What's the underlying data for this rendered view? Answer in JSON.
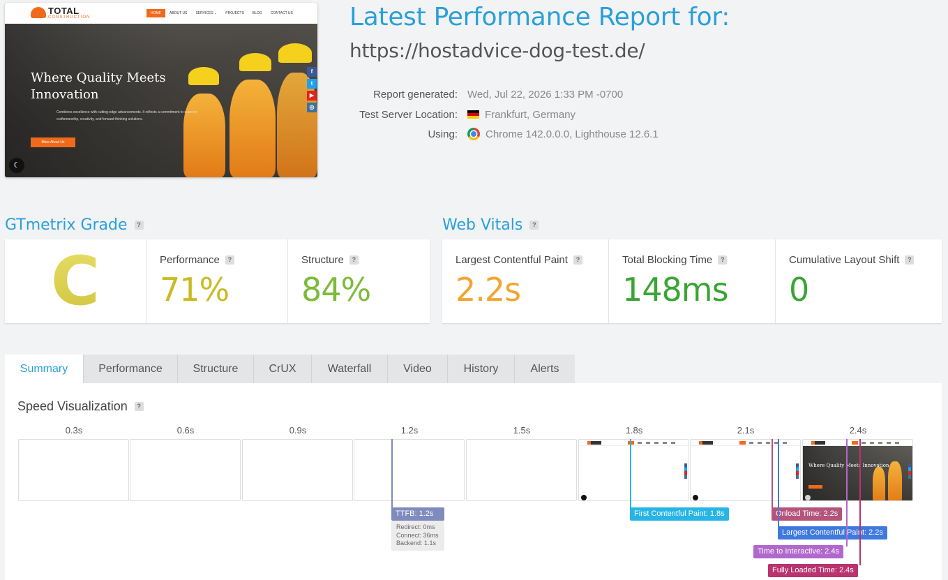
{
  "website_preview": {
    "logo_text": "TOTAL",
    "logo_sub": "CONSTRUCTION",
    "menu": [
      "HOME",
      "ABOUT US",
      "SERVICES ⌄",
      "PROJECTS",
      "BLOG",
      "CONTACT US"
    ],
    "hero_heading_1": "Where Quality Meets",
    "hero_heading_2": "Innovation",
    "hero_text": "Combines excellence with cutting-edge advancements. It reflects a commitment to superior craftsmanship, creativity, and forward-thinking solutions.",
    "cta": "More About Us",
    "social_icons": [
      "facebook-icon",
      "twitter-icon",
      "youtube-icon",
      "instagram-icon"
    ],
    "social_glyphs": [
      "f",
      "t",
      "▶",
      "◎"
    ],
    "social_colors": [
      "#3b5998",
      "#1da1f2",
      "#e62117",
      "#3f729b"
    ],
    "moon_glyph": "☾"
  },
  "report": {
    "title": "Latest Performance Report for:",
    "url": "https://hostadvice-dog-test.de/",
    "generated_label": "Report generated:",
    "generated_value": "Wed, Jul 22, 2026 1:33 PM -0700",
    "location_label": "Test Server Location:",
    "location_value": "Frankfurt, Germany",
    "using_label": "Using:",
    "using_value": "Chrome 142.0.0.0, Lighthouse 12.6.1"
  },
  "gtmetrix": {
    "title": "GTmetrix Grade",
    "help": "?",
    "grade": "C",
    "performance_label": "Performance",
    "performance_value": "71%",
    "structure_label": "Structure",
    "structure_value": "84%"
  },
  "web_vitals": {
    "title": "Web Vitals",
    "help": "?",
    "lcp_label": "Largest Contentful Paint",
    "lcp_value": "2.2s",
    "tbt_label": "Total Blocking Time",
    "tbt_value": "148ms",
    "cls_label": "Cumulative Layout Shift",
    "cls_value": "0"
  },
  "colors": {
    "accent": "#2aa0d8",
    "grade_c": "#cfc33c",
    "performance": "#c9bb22",
    "structure": "#7dbb3a",
    "lcp": "#f3a52f",
    "tbt": "#3aa535",
    "cls": "#3aa535"
  },
  "tabs": [
    {
      "label": "Summary",
      "active": true
    },
    {
      "label": "Performance",
      "active": false
    },
    {
      "label": "Structure",
      "active": false
    },
    {
      "label": "CrUX",
      "active": false
    },
    {
      "label": "Waterfall",
      "active": false
    },
    {
      "label": "Video",
      "active": false
    },
    {
      "label": "History",
      "active": false
    },
    {
      "label": "Alerts",
      "active": false
    }
  ],
  "speed_visualization": {
    "title": "Speed Visualization",
    "help": "?",
    "ticks": [
      "0.3s",
      "0.6s",
      "0.9s",
      "1.2s",
      "1.5s",
      "1.8s",
      "2.1s",
      "2.4s"
    ],
    "frame_states": [
      "blank",
      "blank",
      "blank",
      "blank",
      "blank",
      "partial",
      "partial",
      "full"
    ],
    "mini_hero_title": "Where Quality Meets Innovation",
    "markers": {
      "ttfb": "TTFB: 1.2s",
      "fcp": "First Contentful Paint: 1.8s",
      "onload": "Onload Time: 2.2s",
      "lcp": "Largest Contentful Paint: 2.2s",
      "tti": "Time to Interactive: 2.4s",
      "fully_loaded": "Fully Loaded Time: 2.4s"
    },
    "marker_colors": {
      "ttfb": "#7f8bbd",
      "fcp": "#27b5e6",
      "onload": "#b4547b",
      "lcp": "#3f79de",
      "tti": "#b168cc",
      "fully_loaded": "#b8336f"
    },
    "ttfb_details": {
      "redirect": "Redirect: 0ms",
      "connect": "Connect: 36ms",
      "backend": "Backend: 1.1s"
    }
  }
}
